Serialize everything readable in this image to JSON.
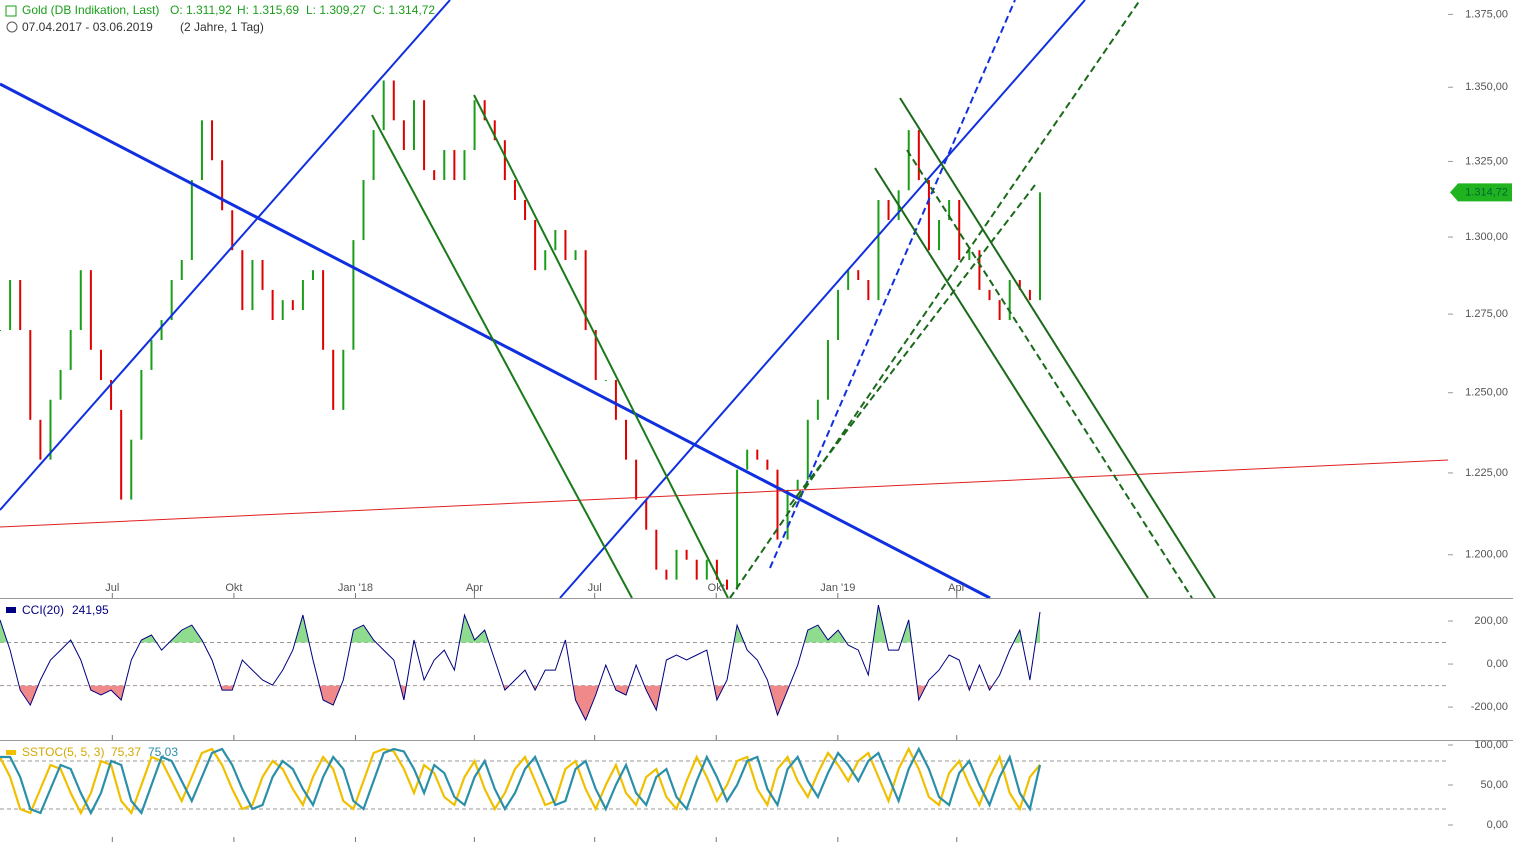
{
  "chart_data": [
    {
      "type": "bar",
      "title": "Gold (DB Indikation, Last)",
      "ohlc_labels": [
        "O: 1.311,92",
        "H: 1.315,69",
        "L: 1.309,27",
        "C: 1.314,72"
      ],
      "period": "07.04.2017 - 03.06.2019",
      "range_label": "(2 Jahre, 1 Tag)",
      "last_label": "1.314,72",
      "log": true,
      "up_color": "#1a9e1a",
      "down_color": "#e00000",
      "tag_color": "#1fb41f",
      "xlim": [
        0,
        787
      ],
      "xticks": [
        {
          "value": 85,
          "label": "Jul"
        },
        {
          "value": 177,
          "label": "Okt"
        },
        {
          "value": 269,
          "label": "Jan '18"
        },
        {
          "value": 359,
          "label": "Apr"
        },
        {
          "value": 450,
          "label": "Jul"
        },
        {
          "value": 542,
          "label": "Okt"
        },
        {
          "value": 634,
          "label": "Jan '19"
        },
        {
          "value": 724,
          "label": "Apr"
        }
      ],
      "ylim": [
        1187,
        1380
      ],
      "yticks": [
        {
          "value": 1375,
          "label": "1.375,00"
        },
        {
          "value": 1350,
          "label": "1.350,00"
        },
        {
          "value": 1325,
          "label": "1.325,00"
        },
        {
          "value": 1300,
          "label": "1.300,00"
        },
        {
          "value": 1275,
          "label": "1.275,00"
        },
        {
          "value": 1250,
          "label": "1.250,00"
        },
        {
          "value": 1225,
          "label": "1.225,00"
        },
        {
          "value": 1200,
          "label": "1.200,00"
        }
      ],
      "values": [
        1269.9,
        1286,
        1269.9,
        1241.5,
        1229.1,
        1247.8,
        1257.2,
        1269.9,
        1289.2,
        1263.6,
        1254,
        1244.6,
        1216.8,
        1235.3,
        1257.2,
        1266.7,
        1273.1,
        1286,
        1292.5,
        1318.8,
        1338.8,
        1325.4,
        1308.8,
        1295.7,
        1276.3,
        1292.5,
        1282.8,
        1273.1,
        1279.5,
        1276.3,
        1286,
        1289.2,
        1263.6,
        1244.6,
        1263.6,
        1299,
        1318.8,
        1335.5,
        1352.3,
        1338.8,
        1328.8,
        1345.6,
        1322.1,
        1318.8,
        1328.8,
        1318.8,
        1328.8,
        1345.6,
        1338.8,
        1332.1,
        1318.8,
        1312.2,
        1305.6,
        1289.2,
        1295.7,
        1302.3,
        1292.5,
        1295.7,
        1269.9,
        1254,
        1254,
        1241.5,
        1229.1,
        1216.8,
        1207.6,
        1195.5,
        1192.5,
        1201.5,
        1198.5,
        1192.5,
        1198.5,
        1192.5,
        1189.5,
        1226,
        1232.2,
        1229.1,
        1226,
        1204.6,
        1219.8,
        1222.9,
        1241.5,
        1247.8,
        1266.7,
        1282.8,
        1289.2,
        1286,
        1279.5,
        1312.2,
        1305.6,
        1315.4,
        1335.5,
        1318.8,
        1295.7,
        1305.6,
        1312.2,
        1292.5,
        1295.7,
        1282.8,
        1279.5,
        1273.1,
        1286,
        1282.8,
        1279.5,
        1314.72
      ]
    },
    {
      "type": "line",
      "ylim": [
        -353,
        307
      ],
      "yticks": [
        {
          "value": 200,
          "label": "200,00"
        },
        {
          "value": 0,
          "label": "0,00"
        },
        {
          "value": -200,
          "label": "-200,00"
        }
      ],
      "bands": [
        -100,
        100
      ],
      "fill_colors": [
        "#8fdc8f",
        "#f08a8a"
      ],
      "series": [
        {
          "name": "CCI(20)",
          "color": "#000080",
          "last_label": "241,95",
          "values": [
            205,
            65,
            -121,
            -191,
            -74,
            19,
            65,
            112,
            19,
            -121,
            -144,
            -121,
            -167,
            19,
            112,
            135,
            65,
            112,
            158,
            181,
            112,
            19,
            -121,
            -121,
            19,
            -28,
            -74,
            -98,
            -28,
            65,
            228,
            19,
            -167,
            -191,
            -74,
            158,
            181,
            112,
            65,
            19,
            -167,
            112,
            -74,
            19,
            65,
            -28,
            228,
            112,
            158,
            19,
            -121,
            -74,
            -28,
            -121,
            -28,
            -28,
            112,
            -167,
            -260,
            -144,
            -5,
            -121,
            -144,
            -5,
            -121,
            -214,
            19,
            42,
            19,
            42,
            65,
            -167,
            -74,
            181,
            65,
            19,
            -74,
            -237,
            -121,
            -5,
            158,
            181,
            112,
            158,
            88,
            65,
            -51,
            274,
            65,
            65,
            205,
            -167,
            -74,
            -28,
            42,
            19,
            -121,
            -5,
            -121,
            -51,
            65,
            158,
            -74,
            241.95
          ]
        }
      ]
    },
    {
      "type": "line",
      "title": "SSTOC(5, 5, 3)",
      "ylim": [
        -21.25,
        106.25
      ],
      "yticks": [
        {
          "value": 100,
          "label": "100,00"
        },
        {
          "value": 50,
          "label": "50,00"
        },
        {
          "value": 0,
          "label": "0,00"
        }
      ],
      "bands": [
        20,
        80
      ],
      "series": [
        {
          "color": "#f0c000",
          "last_label": "75,37",
          "values": [
            85,
            60,
            20,
            15,
            45,
            75,
            70,
            40,
            15,
            40,
            80,
            75,
            30,
            15,
            50,
            85,
            80,
            55,
            30,
            60,
            90,
            95,
            75,
            45,
            20,
            25,
            60,
            80,
            70,
            45,
            25,
            60,
            85,
            70,
            30,
            20,
            55,
            90,
            95,
            92,
            70,
            40,
            75,
            65,
            35,
            25,
            60,
            80,
            45,
            20,
            40,
            70,
            85,
            55,
            25,
            30,
            70,
            80,
            45,
            20,
            50,
            75,
            40,
            25,
            60,
            70,
            35,
            20,
            55,
            85,
            60,
            30,
            50,
            80,
            85,
            45,
            25,
            70,
            85,
            55,
            35,
            65,
            90,
            75,
            55,
            80,
            90,
            60,
            30,
            70,
            95,
            70,
            35,
            25,
            65,
            80,
            50,
            25,
            60,
            85,
            40,
            20,
            60,
            75.37
          ]
        },
        {
          "color": "#2a8fa8",
          "last_label": "75,03",
          "values": [
            85,
            85,
            60,
            20,
            15,
            45,
            75,
            70,
            40,
            15,
            40,
            80,
            75,
            30,
            15,
            50,
            85,
            80,
            55,
            30,
            60,
            90,
            95,
            75,
            45,
            20,
            25,
            60,
            80,
            70,
            45,
            25,
            60,
            85,
            70,
            30,
            20,
            55,
            90,
            95,
            92,
            70,
            40,
            75,
            65,
            35,
            25,
            60,
            80,
            45,
            20,
            40,
            70,
            85,
            55,
            25,
            30,
            70,
            80,
            45,
            20,
            50,
            75,
            40,
            25,
            60,
            70,
            35,
            20,
            55,
            85,
            60,
            30,
            50,
            80,
            85,
            45,
            25,
            70,
            85,
            55,
            35,
            65,
            90,
            75,
            55,
            80,
            90,
            60,
            30,
            70,
            95,
            70,
            35,
            25,
            65,
            80,
            50,
            25,
            60,
            85,
            40,
            20,
            75.03
          ]
        }
      ]
    }
  ]
}
